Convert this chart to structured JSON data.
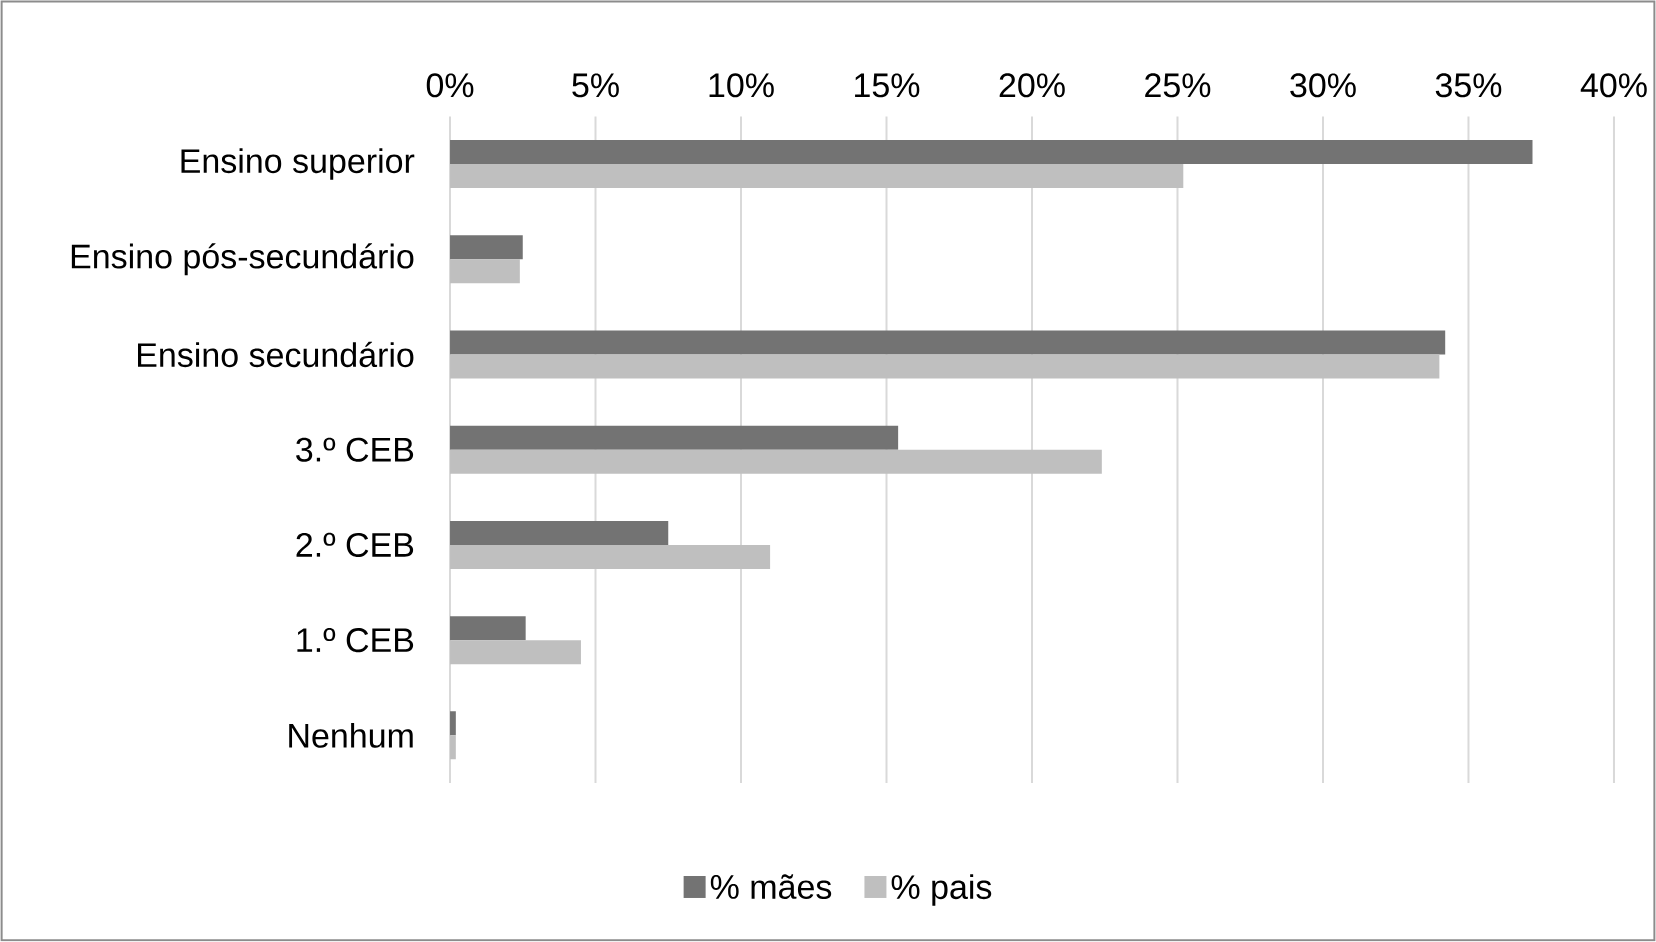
{
  "chart_data": {
    "type": "bar",
    "orientation": "horizontal",
    "categories": [
      "Ensino superior",
      "Ensino pós-secundário",
      "Ensino secundário",
      "3.º CEB",
      "2.º CEB",
      "1.º CEB",
      "Nenhum"
    ],
    "series": [
      {
        "name": "% mães",
        "color": "#737373",
        "values": [
          37.2,
          2.5,
          34.2,
          15.4,
          7.5,
          2.6,
          0.2
        ]
      },
      {
        "name": "% pais",
        "color": "#bfbfbf",
        "values": [
          25.2,
          2.4,
          34.0,
          22.4,
          11.0,
          4.5,
          0.2
        ]
      }
    ],
    "xlim": [
      0,
      40
    ],
    "xticks": [
      {
        "value": 0,
        "label": "0%"
      },
      {
        "value": 5,
        "label": "5%"
      },
      {
        "value": 10,
        "label": "10%"
      },
      {
        "value": 15,
        "label": "15%"
      },
      {
        "value": 20,
        "label": "20%"
      },
      {
        "value": 25,
        "label": "25%"
      },
      {
        "value": 30,
        "label": "30%"
      },
      {
        "value": 35,
        "label": "35%"
      },
      {
        "value": 40,
        "label": "40%"
      }
    ],
    "grid": "x",
    "legend": "bottom"
  }
}
